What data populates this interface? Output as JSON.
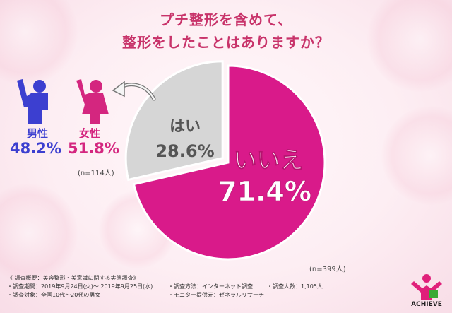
{
  "title": {
    "line1": "プチ整形を含めて、",
    "line2": "整形をしたことはありますか？"
  },
  "chart_data": {
    "type": "pie",
    "slices": [
      {
        "label": "いいえ",
        "value": 71.4,
        "value_text": "71.4%",
        "color": "#d91a8a"
      },
      {
        "label": "はい",
        "value": 28.6,
        "value_text": "28.6%",
        "color": "#d6d6d6"
      }
    ],
    "n_label": "(n=399人)"
  },
  "gender": {
    "male_label": "男性",
    "male_pct": "48.2%",
    "female_label": "女性",
    "female_pct": "51.8%",
    "n_label": "(n=114人)",
    "male_color": "#3c3fd0",
    "female_color": "#d4267f"
  },
  "footnote": {
    "heading": "《 調査概要：美容整形・美意識に関する実態調査》",
    "period": "・調査期間：2019年9月24日(火)〜 2019年9月25日(水)",
    "method": "・調査方法：インターネット調査",
    "count": "・調査人数：1,105人",
    "target": "・調査対象：全国10代〜20代の男女",
    "provider": "・モニター提供元：ゼネラルリサーチ"
  },
  "logo": {
    "text": "ACHIEVE"
  }
}
